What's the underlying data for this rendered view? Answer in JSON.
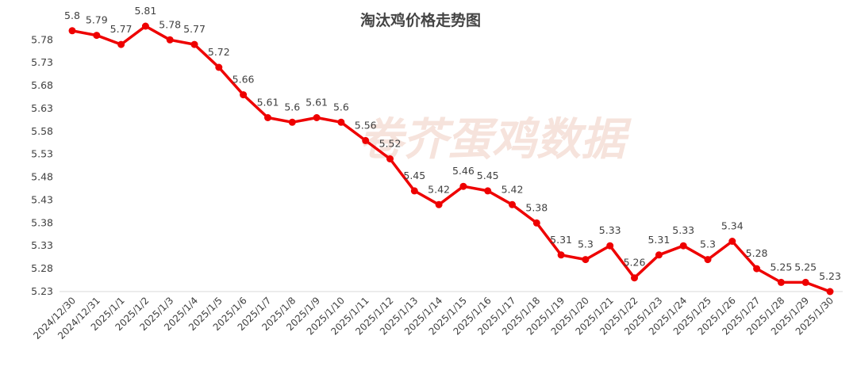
{
  "chart_data": {
    "type": "line",
    "title": "淘汰鸡价格走势图",
    "watermark": "卷芥蛋鸡数据",
    "xlabel": "",
    "ylabel": "",
    "categories": [
      "2024/12/30",
      "2024/12/31",
      "2025/1/1",
      "2025/1/2",
      "2025/1/3",
      "2025/1/4",
      "2025/1/5",
      "2025/1/6",
      "2025/1/7",
      "2025/1/8",
      "2025/1/9",
      "2025/1/10",
      "2025/1/11",
      "2025/1/12",
      "2025/1/13",
      "2025/1/14",
      "2025/1/15",
      "2025/1/16",
      "2025/1/17",
      "2025/1/18",
      "2025/1/19",
      "2025/1/20",
      "2025/1/21",
      "2025/1/22",
      "2025/1/23",
      "2025/1/24",
      "2025/1/25",
      "2025/1/26",
      "2025/1/27",
      "2025/1/28",
      "2025/1/29",
      "2025/1/30"
    ],
    "values": [
      5.8,
      5.79,
      5.77,
      5.81,
      5.78,
      5.77,
      5.72,
      5.66,
      5.61,
      5.6,
      5.61,
      5.6,
      5.56,
      5.52,
      5.45,
      5.42,
      5.46,
      5.45,
      5.42,
      5.38,
      5.31,
      5.3,
      5.33,
      5.26,
      5.31,
      5.33,
      5.3,
      5.34,
      5.28,
      5.25,
      5.25,
      5.23
    ],
    "yticks": [
      "5.23",
      "5.28",
      "5.33",
      "5.38",
      "5.43",
      "5.48",
      "5.53",
      "5.58",
      "5.63",
      "5.68",
      "5.73",
      "5.78"
    ],
    "ylim": [
      5.23,
      5.81
    ],
    "grid": false,
    "legend": "none",
    "colors": {
      "line": "#ee0000",
      "marker": "#ee0000",
      "axis": "#d9d9d9"
    }
  }
}
